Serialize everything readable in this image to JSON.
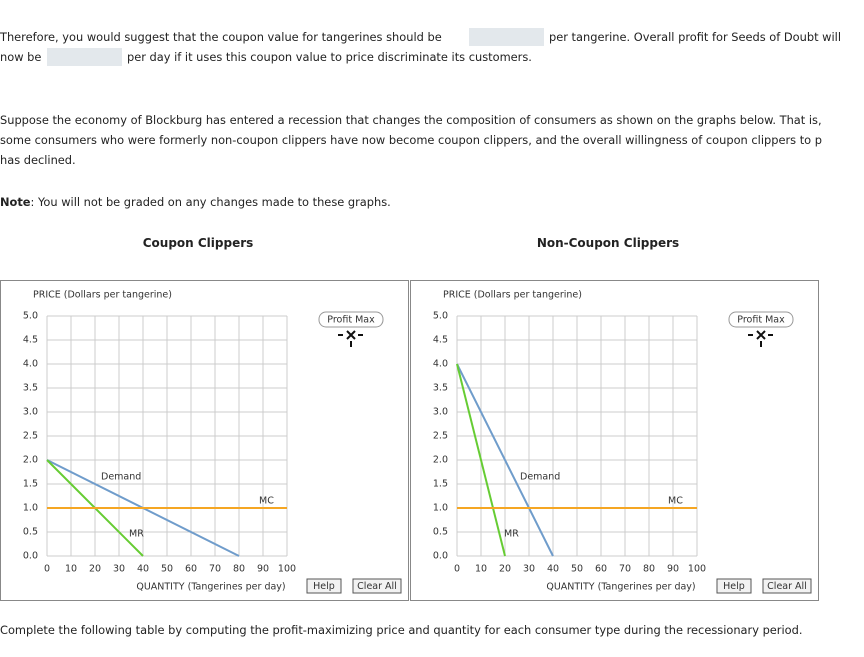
{
  "intro": {
    "line1_before": "Therefore, you would suggest that the coupon value for tangerines should be",
    "line1_after": "per tangerine. Overall profit for Seeds of Doubt will",
    "line2_before": "now be",
    "line2_after": "per day if it uses this coupon value to price discriminate its customers."
  },
  "recession": [
    "Suppose the economy of Blockburg has entered a recession that changes the composition of consumers as shown on the graphs below. That is,",
    "some consumers who were formerly non-coupon clippers have now become coupon clippers, and the overall willingness of coupon clippers to p",
    "has declined."
  ],
  "note": {
    "label": "Note",
    "text": ": You will not be graded on any changes made to these graphs."
  },
  "chart_data": [
    {
      "type": "line",
      "title": "Coupon Clippers",
      "y_label": "PRICE (Dollars per tangerine)",
      "x_label": "QUANTITY (Tangerines per day)",
      "xlim": [
        0,
        100
      ],
      "ylim": [
        0,
        5
      ],
      "xticks": [
        0,
        10,
        20,
        30,
        40,
        50,
        60,
        70,
        80,
        90,
        100
      ],
      "yticks": [
        {
          "value": 0,
          "label": "0.0"
        },
        {
          "value": 0.5,
          "label": "0.5"
        },
        {
          "value": 1,
          "label": "1.0"
        },
        {
          "value": 1.5,
          "label": "1.5"
        },
        {
          "value": 2,
          "label": "2.0"
        },
        {
          "value": 2.5,
          "label": "2.5"
        },
        {
          "value": 3,
          "label": "3.0"
        },
        {
          "value": 3.5,
          "label": "3.5"
        },
        {
          "value": 4,
          "label": "4.0"
        },
        {
          "value": 4.5,
          "label": "4.5"
        },
        {
          "value": 5,
          "label": "5.0"
        }
      ],
      "grid": true,
      "series": [
        {
          "name": "Demand",
          "color": "#6f9ccb",
          "x": [
            0,
            80
          ],
          "values": [
            2,
            0
          ]
        },
        {
          "name": "MR",
          "color": "#66cc33",
          "x": [
            0,
            40
          ],
          "values": [
            2,
            0
          ]
        },
        {
          "name": "MC",
          "color": "#f5a623",
          "x": [
            0,
            100
          ],
          "values": [
            1,
            1
          ]
        }
      ],
      "tool": "Profit Max",
      "buttons": [
        "Help",
        "Clear All"
      ]
    },
    {
      "type": "line",
      "title": "Non-Coupon Clippers",
      "y_label": "PRICE (Dollars per tangerine)",
      "x_label": "QUANTITY (Tangerines per day)",
      "xlim": [
        0,
        100
      ],
      "ylim": [
        0,
        5
      ],
      "xticks": [
        0,
        10,
        20,
        30,
        40,
        50,
        60,
        70,
        80,
        90,
        100
      ],
      "yticks": [
        {
          "value": 0,
          "label": "0.0"
        },
        {
          "value": 0.5,
          "label": "0.5"
        },
        {
          "value": 1,
          "label": "1.0"
        },
        {
          "value": 1.5,
          "label": "1.5"
        },
        {
          "value": 2,
          "label": "2.0"
        },
        {
          "value": 2.5,
          "label": "2.5"
        },
        {
          "value": 3,
          "label": "3.0"
        },
        {
          "value": 3.5,
          "label": "3.5"
        },
        {
          "value": 4,
          "label": "4.0"
        },
        {
          "value": 4.5,
          "label": "4.5"
        },
        {
          "value": 5,
          "label": "5.0"
        }
      ],
      "grid": true,
      "series": [
        {
          "name": "Demand",
          "color": "#6f9ccb",
          "x": [
            0,
            40
          ],
          "values": [
            4,
            0
          ]
        },
        {
          "name": "MR",
          "color": "#66cc33",
          "x": [
            0,
            20
          ],
          "values": [
            4,
            0
          ]
        },
        {
          "name": "MC",
          "color": "#f5a623",
          "x": [
            0,
            100
          ],
          "values": [
            1,
            1
          ]
        }
      ],
      "tool": "Profit Max",
      "buttons": [
        "Help",
        "Clear All"
      ]
    }
  ],
  "footer": "Complete the following table by computing the profit-maximizing price and quantity for each consumer type during the recessionary period."
}
